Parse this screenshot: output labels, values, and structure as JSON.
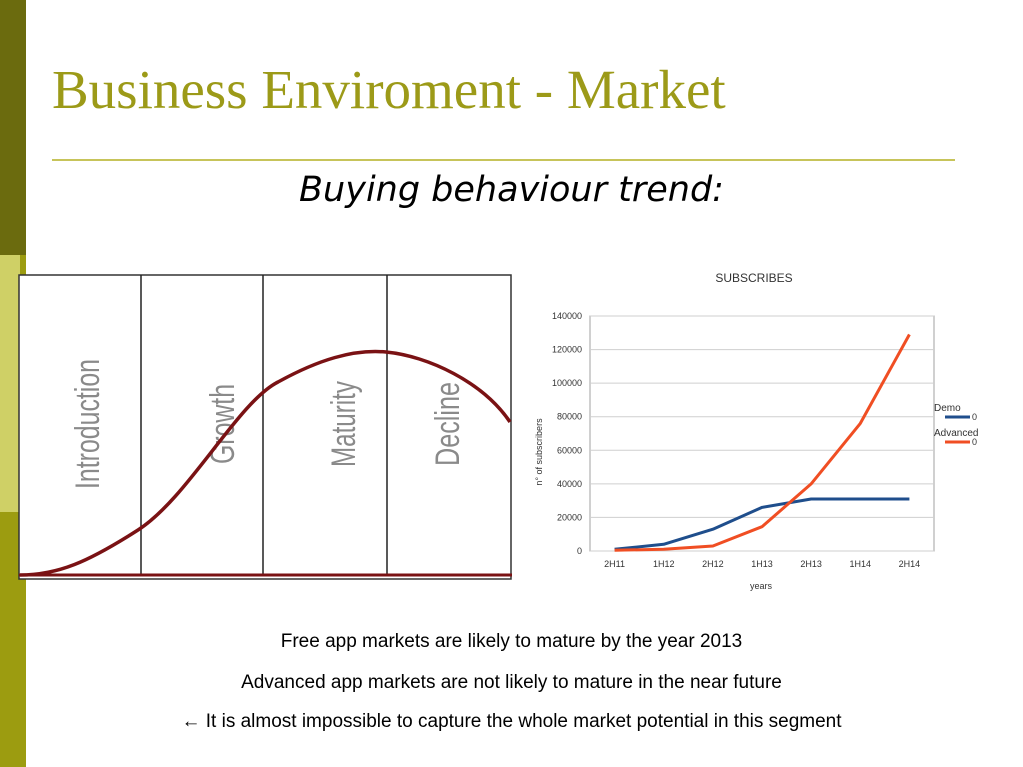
{
  "slide": {
    "title": "Business Enviroment - Market",
    "subtitle": "Buying behaviour trend:",
    "lines": [
      "Free app markets are likely to mature by the year 2013",
      "Advanced app markets are not likely to mature in the near future",
      "← It is almost impossible to capture the whole market potential in this segment"
    ]
  },
  "colors": {
    "accent": "#9c9a18",
    "demo": "#1f4e8c",
    "advanced": "#f04e23",
    "curve": "#7a1214"
  },
  "chart_data": [
    {
      "type": "line",
      "stages": [
        "Introduction",
        "Growth",
        "Maturity",
        "Decline"
      ],
      "grid": true
    },
    {
      "type": "line",
      "title": "SUBSCRIBES",
      "xlabel": "years",
      "ylabel": "n° of subscribers",
      "categories": [
        "2H11",
        "1H12",
        "2H12",
        "1H13",
        "2H13",
        "1H14",
        "2H14"
      ],
      "ylim": [
        0,
        140000
      ],
      "yticks": [
        "0",
        "20000",
        "40000",
        "60000",
        "80000",
        "100000",
        "120000",
        "140000"
      ],
      "grid": true,
      "legend_position": "right",
      "series": [
        {
          "name": "Demo",
          "legend_value": "0",
          "values": [
            1000,
            4000,
            13000,
            26000,
            31000,
            31000,
            31000
          ]
        },
        {
          "name": "Advanced",
          "legend_value": "0",
          "values": [
            500,
            1000,
            3000,
            14500,
            40000,
            76000,
            129000
          ]
        }
      ]
    }
  ]
}
